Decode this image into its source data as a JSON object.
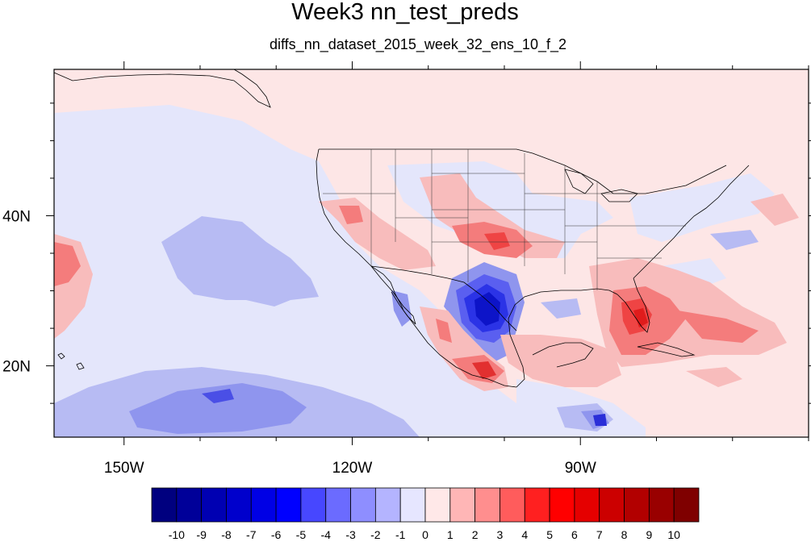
{
  "title": "Week3 nn_test_preds",
  "subtitle": "diffs_nn_dataset_2015_week_32_ens_10_f_2",
  "map": {
    "projection": "cylindrical-equidistant",
    "lon_range": [
      -159.2,
      -60.0
    ],
    "lat_range": [
      10.5,
      59.5
    ],
    "x_ticks": [
      {
        "lon": -150,
        "label": "150W"
      },
      {
        "lon": -120,
        "label": "120W"
      },
      {
        "lon": -90,
        "label": "90W"
      }
    ],
    "y_ticks": [
      {
        "lat": 40,
        "label": "40N"
      },
      {
        "lat": 20,
        "label": "20N"
      }
    ],
    "background_level": 0
  },
  "colorbar": {
    "labels": [
      "-10",
      "-9",
      "-8",
      "-7",
      "-6",
      "-5",
      "-4",
      "-3",
      "-2",
      "-1",
      "0",
      "1",
      "2",
      "3",
      "4",
      "5",
      "6",
      "7",
      "8",
      "9",
      "10"
    ],
    "colors": [
      "#00007f",
      "#000099",
      "#0000b2",
      "#0000cc",
      "#0000e5",
      "#0000ff",
      "#4747ff",
      "#6b6bff",
      "#8e8eff",
      "#b4b4ff",
      "#e6e6ff",
      "#ffe8e8",
      "#ffb6b6",
      "#ff8e8e",
      "#ff5c5c",
      "#ff2020",
      "#ff0000",
      "#e50000",
      "#cc0000",
      "#b20000",
      "#990000",
      "#7f0000"
    ]
  }
}
